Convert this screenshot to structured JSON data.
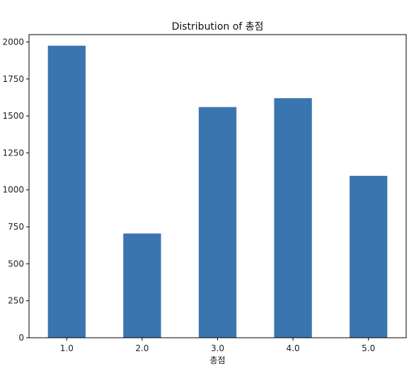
{
  "chart_data": {
    "type": "bar",
    "title": "Distribution of 총점",
    "xlabel": "총점",
    "ylabel": "",
    "categories": [
      "1.0",
      "2.0",
      "3.0",
      "4.0",
      "5.0"
    ],
    "values": [
      1975,
      705,
      1560,
      1620,
      1095
    ],
    "ylim": [
      0,
      2050
    ],
    "yticks": [
      0,
      250,
      500,
      750,
      1000,
      1250,
      1500,
      1750,
      2000
    ],
    "ytick_labels": [
      "0",
      "250",
      "500",
      "750",
      "1000",
      "1250",
      "1500",
      "1750",
      "2000"
    ],
    "bar_color": "#3a75af",
    "grid": false,
    "legend": false
  }
}
